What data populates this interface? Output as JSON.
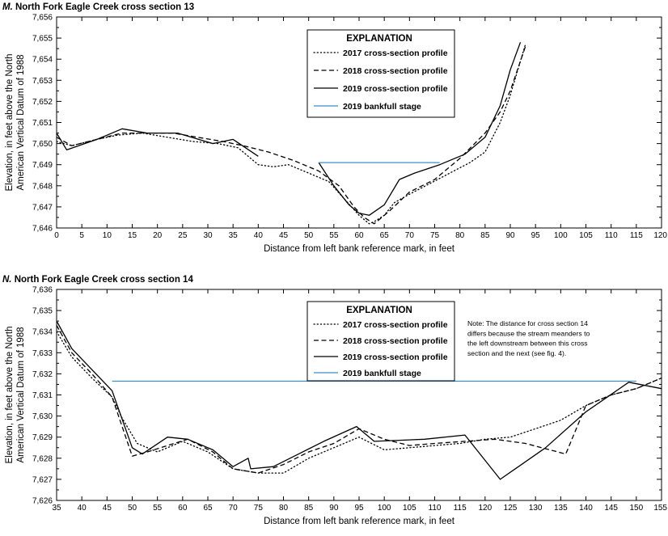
{
  "chart_data": [
    {
      "type": "line",
      "title_letter": "M.",
      "title": "North Fork Eagle Creek cross section 13",
      "xlabel": "Distance from left bank reference mark, in feet",
      "ylabel_line1": "Elevation, in feet above the North",
      "ylabel_line2": "American Vertical Datum of 1988",
      "xlim": [
        0,
        120
      ],
      "ylim": [
        7646,
        7656
      ],
      "xticks": [
        "0",
        "5",
        "10",
        "15",
        "20",
        "25",
        "30",
        "35",
        "40",
        "45",
        "50",
        "55",
        "60",
        "65",
        "70",
        "75",
        "80",
        "85",
        "90",
        "95",
        "100",
        "105",
        "110",
        "115",
        "120"
      ],
      "yticks": [
        "7,646",
        "7,647",
        "7,648",
        "7,649",
        "7,650",
        "7,651",
        "7,652",
        "7,653",
        "7,654",
        "7,655",
        "7,656"
      ],
      "legend_title": "EXPLANATION",
      "series": [
        {
          "name": "2017 cross-section profile",
          "style": "dotted",
          "color": "#000000",
          "x": [
            0,
            3,
            8,
            12,
            17,
            22,
            27,
            32,
            36,
            40,
            43,
            46,
            50,
            54,
            57,
            60,
            62,
            63,
            65,
            67,
            70,
            74,
            78,
            82,
            85,
            88,
            90,
            93
          ],
          "y": [
            7650.1,
            7649.9,
            7650.2,
            7650.4,
            7650.5,
            7650.3,
            7650.1,
            7650.0,
            7649.8,
            7649.0,
            7648.9,
            7649.0,
            7648.6,
            7648.2,
            7647.4,
            7646.6,
            7646.2,
            7646.3,
            7646.6,
            7647.2,
            7647.6,
            7648.1,
            7648.6,
            7649.1,
            7649.6,
            7651.0,
            7652.3,
            7654.7
          ]
        },
        {
          "name": "2018 cross-section profile",
          "style": "dashed",
          "color": "#000000",
          "x": [
            0,
            3,
            8,
            13,
            18,
            23,
            28,
            33,
            37,
            42,
            47,
            52,
            56,
            59,
            61,
            63,
            66,
            70,
            75,
            80,
            85,
            88,
            90,
            93
          ],
          "y": [
            7650.3,
            7649.9,
            7650.2,
            7650.5,
            7650.5,
            7650.5,
            7650.3,
            7650.1,
            7649.9,
            7649.6,
            7649.2,
            7648.7,
            7648.0,
            7647.0,
            7646.5,
            7646.2,
            7646.8,
            7647.7,
            7648.3,
            7649.3,
            7650.5,
            7651.5,
            7652.5,
            7654.6
          ]
        },
        {
          "name": "2019 cross-section profile",
          "style": "solid",
          "color": "#000000",
          "x": [
            0,
            2,
            8,
            13,
            18,
            24,
            31,
            35,
            40
          ],
          "y": [
            7650.5,
            7649.7,
            7650.2,
            7650.7,
            7650.5,
            7650.5,
            7650.0,
            7650.2,
            7649.4
          ]
        },
        {
          "name": "",
          "style": "solid",
          "color": "#000000",
          "x": [
            52,
            55,
            58,
            60,
            62,
            65,
            68,
            71,
            76,
            81,
            85,
            88,
            90,
            92
          ],
          "y": [
            7649.1,
            7648.0,
            7647.1,
            7646.7,
            7646.6,
            7647.1,
            7648.3,
            7648.6,
            7649.0,
            7649.5,
            7650.3,
            7651.8,
            7653.5,
            7654.8
          ]
        },
        {
          "name": "2019 bankfull stage",
          "style": "solid",
          "color": "#3f8ec7",
          "x": [
            52,
            76
          ],
          "y": [
            7649.1,
            7649.1
          ]
        }
      ],
      "legend_position": "top-center"
    },
    {
      "type": "line",
      "title_letter": "N.",
      "title": "North Fork Eagle Creek cross section 14",
      "xlabel": "Distance from left bank reference mark, in feet",
      "ylabel_line1": "Elevation, in feet above the North",
      "ylabel_line2": "American Vertical Datum of 1988",
      "xlim": [
        35,
        155
      ],
      "ylim": [
        7626,
        7636
      ],
      "xticks": [
        "35",
        "40",
        "45",
        "50",
        "55",
        "60",
        "65",
        "70",
        "75",
        "80",
        "85",
        "90",
        "95",
        "100",
        "105",
        "110",
        "115",
        "120",
        "125",
        "130",
        "135",
        "140",
        "145",
        "150",
        "155"
      ],
      "yticks": [
        "7,626",
        "7,627",
        "7,628",
        "7,629",
        "7,630",
        "7,631",
        "7,632",
        "7,633",
        "7,634",
        "7,635",
        "7,636"
      ],
      "legend_title": "EXPLANATION",
      "note_lines": [
        "Note: The distance for cross section 14",
        "differs because the stream meanders to",
        "the left downstream between this cross",
        "section and the next (see fig. 4)."
      ],
      "series": [
        {
          "name": "2017 cross-section profile",
          "style": "dotted",
          "color": "#000000",
          "x": [
            35,
            38,
            42,
            46,
            48,
            51,
            55,
            60,
            65,
            70,
            75,
            80,
            85,
            90,
            95,
            100,
            105,
            110,
            115,
            120,
            125,
            130,
            135,
            140,
            145,
            150,
            155
          ],
          "y": [
            7634.0,
            7632.8,
            7631.8,
            7630.9,
            7629.9,
            7628.7,
            7628.3,
            7628.8,
            7628.3,
            7627.5,
            7627.3,
            7627.3,
            7628.0,
            7628.5,
            7629.0,
            7628.4,
            7628.5,
            7628.6,
            7628.7,
            7628.9,
            7629.0,
            7629.4,
            7629.8,
            7630.5,
            7631.0,
            7631.3,
            7631.8
          ]
        },
        {
          "name": "2018 cross-section profile",
          "style": "dashed",
          "color": "#000000",
          "x": [
            35,
            38,
            42,
            46,
            50,
            53,
            57,
            61,
            66,
            70,
            75,
            80,
            85,
            90,
            95,
            100,
            105,
            110,
            116,
            122,
            128,
            136,
            140,
            145,
            150,
            155
          ],
          "y": [
            7634.3,
            7633.0,
            7632.0,
            7630.9,
            7628.1,
            7628.3,
            7628.6,
            7628.9,
            7628.3,
            7627.5,
            7627.3,
            7627.7,
            7628.3,
            7628.7,
            7629.4,
            7628.9,
            7628.6,
            7628.7,
            7628.8,
            7628.9,
            7628.7,
            7628.2,
            7630.5,
            7631.0,
            7631.3,
            7631.8
          ]
        },
        {
          "name": "2019 cross-section profile",
          "style": "solid",
          "color": "#000000",
          "x": [
            35,
            38,
            42,
            46,
            50,
            52,
            57,
            61,
            66,
            70,
            73,
            73.5,
            78,
            83,
            88,
            94.5,
            98,
            108,
            116,
            123,
            132,
            140,
            148.5,
            155
          ],
          "y": [
            7634.5,
            7633.2,
            7632.2,
            7631.2,
            7628.5,
            7628.2,
            7629.0,
            7628.9,
            7628.4,
            7627.6,
            7628.0,
            7627.5,
            7627.6,
            7628.2,
            7628.8,
            7629.5,
            7628.8,
            7628.9,
            7629.1,
            7627.0,
            7628.5,
            7630.2,
            7631.6,
            7631.3
          ]
        },
        {
          "name": "2019 bankfull stage",
          "style": "solid",
          "color": "#3f8ec7",
          "x": [
            46,
            150
          ],
          "y": [
            7631.65,
            7631.65
          ]
        }
      ],
      "legend_position": "top-center"
    }
  ]
}
